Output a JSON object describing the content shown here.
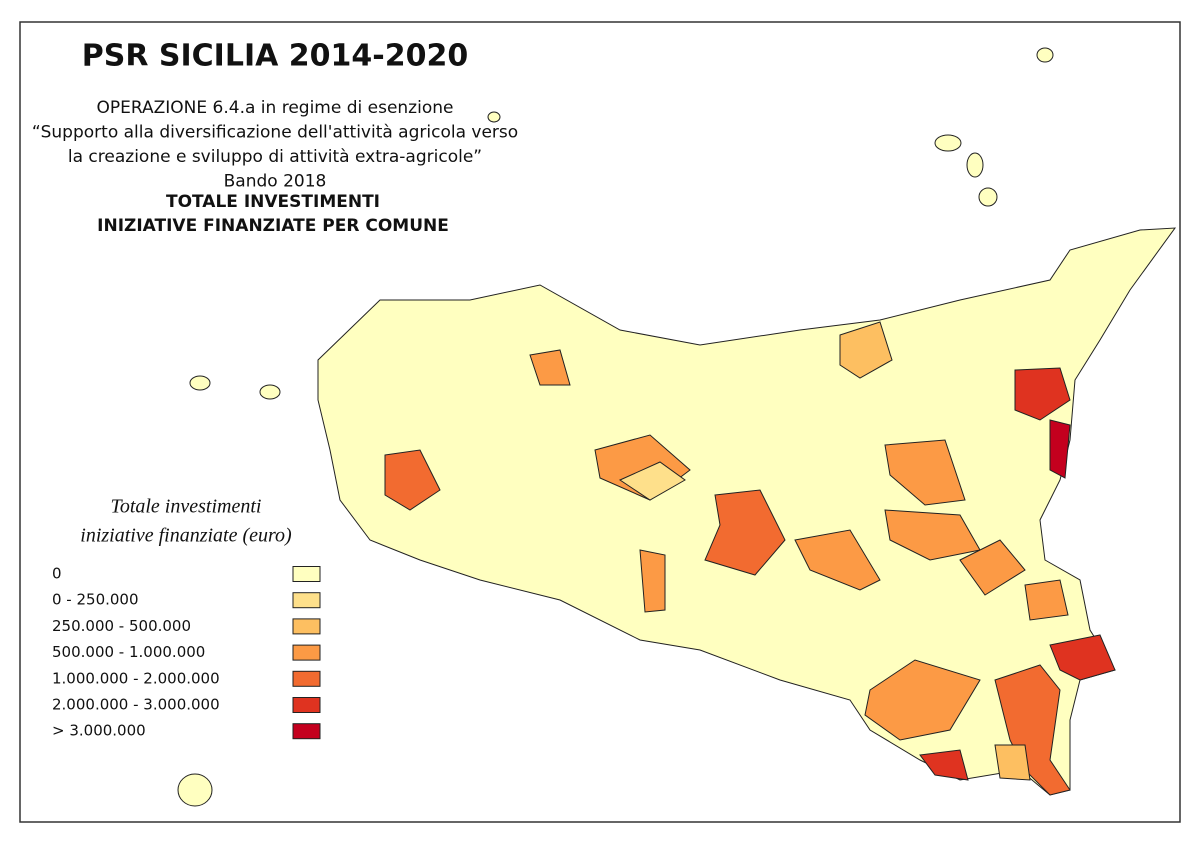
{
  "header": {
    "title": "PSR SICILIA 2014-2020",
    "lines": [
      "OPERAZIONE 6.4.a in regime di esenzione",
      "“Supporto alla diversificazione dell'attività agricola verso",
      "la creazione e sviluppo di attività extra-agricole”",
      "Bando 2018"
    ],
    "bold_lines": [
      "TOTALE INVESTIMENTI",
      "INIZIATIVE FINANZIATE PER COMUNE"
    ]
  },
  "legend": {
    "title": [
      "Totale investimenti",
      "iniziative finanziate (euro)"
    ],
    "items": [
      {
        "label": "0",
        "color": "#ffffc0"
      },
      {
        "label": "0 - 250.000",
        "color": "#fee08b"
      },
      {
        "label": "250.000 - 500.000",
        "color": "#fdbf61"
      },
      {
        "label": "500.000 - 1.000.000",
        "color": "#fc9a45"
      },
      {
        "label": "1.000.000 - 2.000.000",
        "color": "#f26b30"
      },
      {
        "label": "2.000.000 - 3.000.000",
        "color": "#df3320"
      },
      {
        "label": "> 3.000.000",
        "color": "#c4001e"
      }
    ]
  }
}
